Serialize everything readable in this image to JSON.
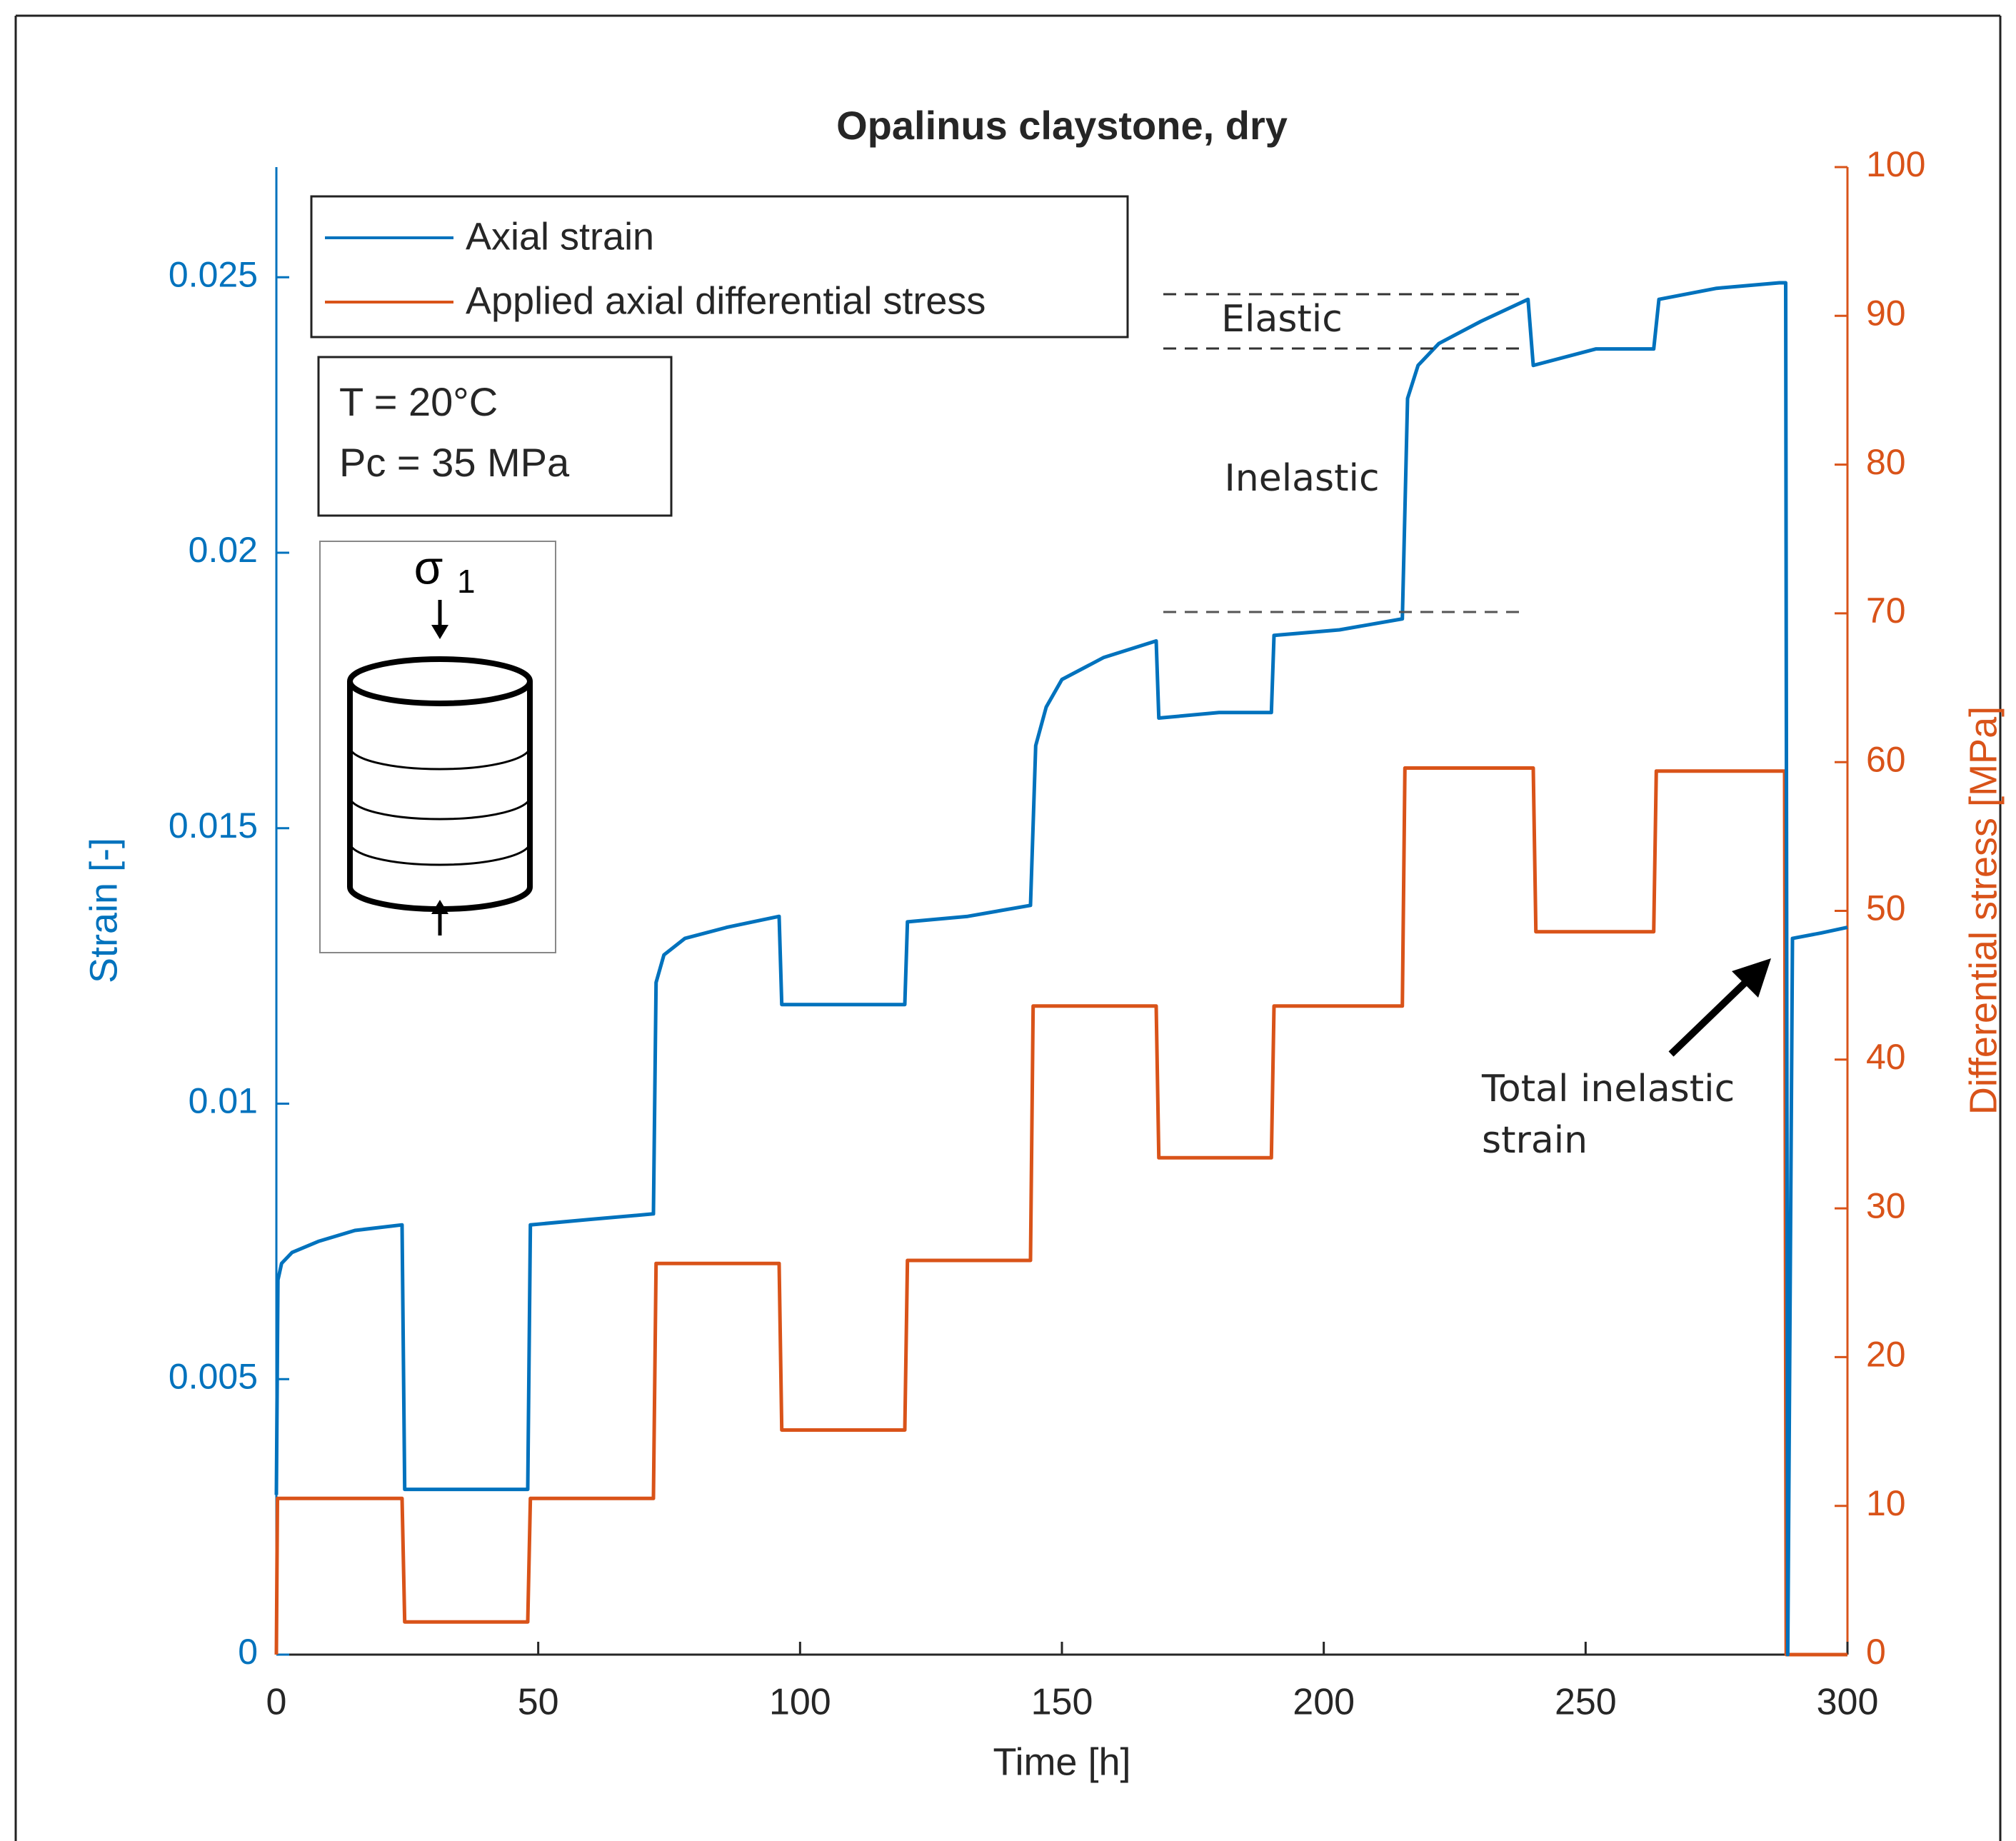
{
  "chart_data": {
    "type": "line",
    "title": "Opalinus claystone, dry",
    "xlabel": "Time [h]",
    "ylabel": "Strain [-]",
    "y2label": "Differential stress [MPa]",
    "xlim": [
      0,
      300
    ],
    "xticks": [
      0,
      50,
      100,
      150,
      200,
      250,
      300
    ],
    "ylim": [
      0,
      0.027
    ],
    "yticks": [
      0,
      0.005,
      0.01,
      0.015,
      0.02,
      0.025
    ],
    "y2lim": [
      0,
      100
    ],
    "y2ticks": [
      0,
      10,
      20,
      30,
      40,
      50,
      60,
      70,
      80,
      90,
      100
    ],
    "legend": "upper left",
    "series": [
      {
        "name": "Axial strain",
        "color": "#0072bd",
        "x": [
          0,
          0.3,
          1,
          3,
          8,
          15,
          24,
          24.5,
          35,
          48,
          48.5,
          60,
          72,
          72.5,
          74,
          78,
          86,
          96,
          96.5,
          108,
          120,
          120.5,
          132,
          144,
          145,
          147,
          150,
          158,
          168,
          168.5,
          180,
          190,
          190.5,
          203,
          215,
          216,
          218,
          222,
          230,
          239,
          240,
          252,
          263,
          264,
          275,
          287,
          288.2,
          288.6,
          289.5,
          295,
          300
        ],
        "values": [
          0.0029,
          0.0068,
          0.0071,
          0.0073,
          0.0075,
          0.0077,
          0.0078,
          0.003,
          0.003,
          0.003,
          0.0078,
          0.0079,
          0.008,
          0.0122,
          0.0127,
          0.013,
          0.0132,
          0.0134,
          0.0118,
          0.0118,
          0.0118,
          0.0133,
          0.0134,
          0.0136,
          0.0165,
          0.0172,
          0.0177,
          0.0181,
          0.0184,
          0.017,
          0.0171,
          0.0171,
          0.0185,
          0.0186,
          0.0188,
          0.0228,
          0.0234,
          0.0238,
          0.0242,
          0.0246,
          0.0234,
          0.0237,
          0.0237,
          0.0246,
          0.0248,
          0.0249,
          0.0249,
          0,
          0.013,
          0.0131,
          0.0132
        ]
      },
      {
        "name": "Applied axial differential stress",
        "color": "#d95319",
        "axis": "y2",
        "x": [
          0,
          0.2,
          24,
          24.5,
          48,
          48.5,
          72,
          72.5,
          96,
          96.5,
          120,
          120.5,
          144,
          144.5,
          168,
          168.5,
          190,
          190.5,
          215,
          215.5,
          240,
          240.5,
          263,
          263.5,
          288,
          288.3,
          300
        ],
        "values": [
          0,
          10.5,
          10.5,
          2.2,
          2.2,
          10.5,
          10.5,
          26.3,
          26.3,
          15.1,
          15.1,
          26.5,
          26.5,
          43.6,
          43.6,
          33.4,
          33.4,
          43.6,
          43.6,
          59.6,
          59.6,
          48.6,
          48.6,
          59.4,
          59.4,
          0,
          0
        ]
      }
    ],
    "conditions": [
      "T = 20°C",
      "Pc = 35 MPa"
    ],
    "sigma_label": {
      "symbol": "σ",
      "subscript": "1"
    },
    "annotations": {
      "elastic": "Elastic",
      "inelastic": "Inelastic",
      "total_inelastic": [
        "Total inelastic",
        "strain"
      ]
    }
  }
}
